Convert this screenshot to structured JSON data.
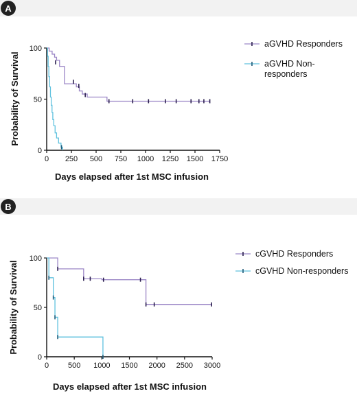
{
  "panels": [
    {
      "label": "A"
    },
    {
      "label": "B"
    }
  ],
  "chart_data": [
    {
      "type": "line",
      "subtype": "kaplan-meier-step",
      "panel": "A",
      "xlabel": "Days elapsed after 1st MSC infusion",
      "ylabel": "Probability of Survival",
      "xlim": [
        0,
        1750
      ],
      "ylim": [
        0,
        100
      ],
      "xticks": [
        0,
        250,
        500,
        750,
        1000,
        1250,
        1500,
        1750
      ],
      "yticks": [
        0,
        50,
        100
      ],
      "grid": false,
      "legend_position": "right",
      "series": [
        {
          "name": "aGVHD Responders",
          "color": "#9b86c6",
          "censor_color": "#2c2050",
          "steps": [
            [
              0,
              100
            ],
            [
              25,
              97
            ],
            [
              55,
              94
            ],
            [
              80,
              91
            ],
            [
              100,
              88
            ],
            [
              130,
              82
            ],
            [
              180,
              65
            ],
            [
              260,
              65
            ],
            [
              300,
              62
            ],
            [
              330,
              58
            ],
            [
              360,
              55
            ],
            [
              410,
              52
            ],
            [
              610,
              48
            ],
            [
              1650,
              48
            ]
          ],
          "censored": [
            [
              90,
              86
            ],
            [
              270,
              67
            ],
            [
              325,
              63
            ],
            [
              390,
              54
            ],
            [
              630,
              48
            ],
            [
              870,
              48
            ],
            [
              1030,
              48
            ],
            [
              1200,
              48
            ],
            [
              1310,
              48
            ],
            [
              1460,
              48
            ],
            [
              1540,
              48
            ],
            [
              1590,
              48
            ],
            [
              1650,
              48
            ]
          ]
        },
        {
          "name": "aGVHD Non-responders",
          "color": "#5fc1de",
          "censor_color": "#1e5a78",
          "steps": [
            [
              0,
              100
            ],
            [
              8,
              92
            ],
            [
              15,
              82
            ],
            [
              22,
              72
            ],
            [
              30,
              62
            ],
            [
              38,
              52
            ],
            [
              46,
              44
            ],
            [
              54,
              37
            ],
            [
              62,
              30
            ],
            [
              72,
              24
            ],
            [
              85,
              17
            ],
            [
              100,
              12
            ],
            [
              120,
              7
            ],
            [
              145,
              3
            ],
            [
              160,
              0
            ]
          ],
          "censored": [
            [
              150,
              3
            ]
          ]
        }
      ]
    },
    {
      "type": "line",
      "subtype": "kaplan-meier-step",
      "panel": "B",
      "xlabel": "Days elapsed after 1st MSC infusion",
      "ylabel": "Probability of Survival",
      "xlim": [
        0,
        3000
      ],
      "ylim": [
        0,
        100
      ],
      "xticks": [
        0,
        500,
        1000,
        1500,
        2000,
        2500,
        3000
      ],
      "yticks": [
        0,
        50,
        100
      ],
      "grid": false,
      "legend_position": "right",
      "series": [
        {
          "name": "cGVHD Responders",
          "color": "#9b86c6",
          "censor_color": "#2c2050",
          "steps": [
            [
              0,
              100
            ],
            [
              200,
              89
            ],
            [
              670,
              79
            ],
            [
              1000,
              78
            ],
            [
              1800,
              53
            ],
            [
              3000,
              53
            ]
          ],
          "censored": [
            [
              200,
              89
            ],
            [
              670,
              79
            ],
            [
              790,
              79
            ],
            [
              1030,
              78
            ],
            [
              1700,
              78
            ],
            [
              1800,
              53
            ],
            [
              1950,
              53
            ],
            [
              2990,
              53
            ]
          ]
        },
        {
          "name": "cGVHD Non-responders",
          "color": "#5fc1de",
          "censor_color": "#1e5a78",
          "steps": [
            [
              0,
              100
            ],
            [
              40,
              80
            ],
            [
              120,
              60
            ],
            [
              150,
              40
            ],
            [
              200,
              20
            ],
            [
              1020,
              20
            ],
            [
              1020,
              0
            ]
          ],
          "censored": [
            [
              40,
              80
            ],
            [
              120,
              60
            ],
            [
              150,
              40
            ],
            [
              200,
              20
            ],
            [
              1020,
              0
            ]
          ]
        }
      ]
    }
  ]
}
